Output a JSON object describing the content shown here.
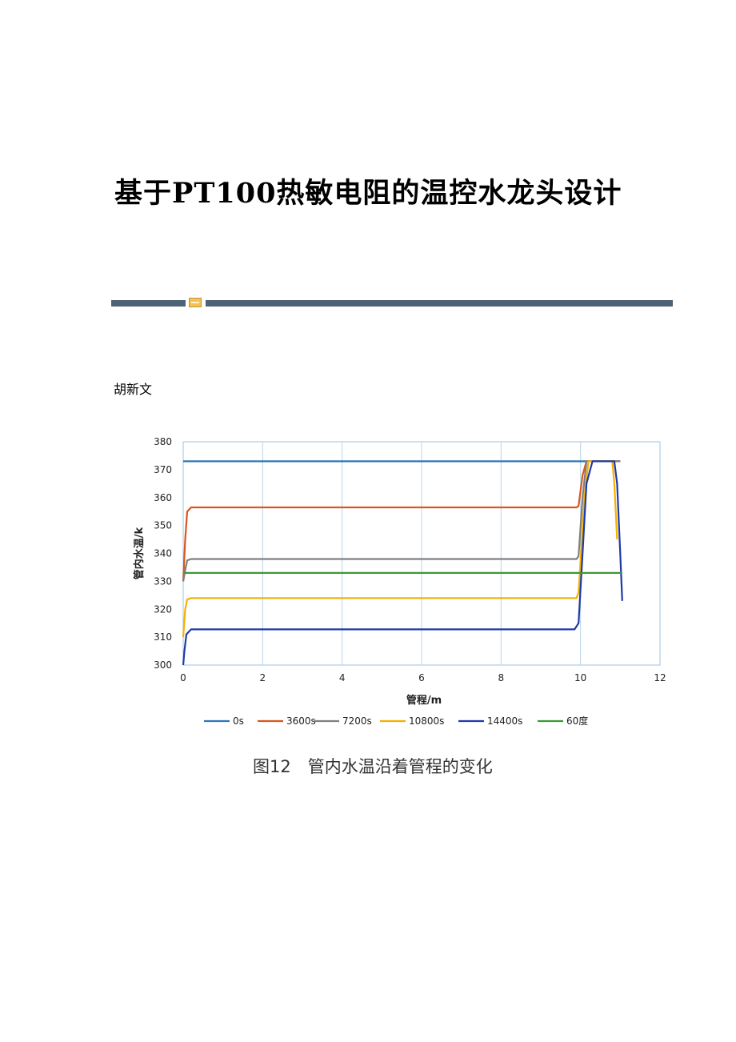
{
  "paper": {
    "title": "基于PT100热敏电阻的温控水龙头设计",
    "author": "胡新文",
    "figure_caption": "图12　管内水温沿着管程的变化"
  },
  "colors": {
    "rule_bar": "#4d6375",
    "rule_badge": "#f2c35a"
  },
  "chart_data": {
    "type": "line",
    "title": "",
    "xlabel": "管程/m",
    "ylabel": "管内水温/k",
    "xlim": [
      0,
      12
    ],
    "ylim": [
      300,
      380
    ],
    "xticks": [
      0,
      2,
      4,
      6,
      8,
      10,
      12
    ],
    "yticks": [
      300,
      310,
      320,
      330,
      340,
      350,
      360,
      370,
      380
    ],
    "grid": "vertical",
    "legend_position": "bottom",
    "series": [
      {
        "name": "0s",
        "color": "#2e75b6",
        "x": [
          0,
          11
        ],
        "y": [
          373,
          373
        ]
      },
      {
        "name": "3600s",
        "color": "#d9571e",
        "x": [
          0,
          0.05,
          0.1,
          0.2,
          9.9,
          9.95,
          10.05,
          10.15,
          11
        ],
        "y": [
          330,
          345,
          355,
          356.5,
          356.5,
          357,
          368,
          373,
          373
        ]
      },
      {
        "name": "7200s",
        "color": "#7f7f7f",
        "x": [
          0,
          0.05,
          0.1,
          0.2,
          9.9,
          9.95,
          10.05,
          10.15,
          11
        ],
        "y": [
          330,
          334,
          337.5,
          338,
          338,
          339,
          360,
          373,
          373
        ]
      },
      {
        "name": "10800s",
        "color": "#f5b000",
        "x": [
          0,
          0.05,
          0.1,
          0.2,
          9.9,
          9.95,
          10.1,
          10.2,
          10.8,
          10.85,
          10.92
        ],
        "y": [
          310,
          320,
          323.5,
          324,
          324,
          326,
          360,
          373,
          373,
          365,
          345
        ]
      },
      {
        "name": "14400s",
        "color": "#1f3aa8",
        "x": [
          0,
          0.03,
          0.08,
          0.2,
          9.85,
          9.95,
          10.05,
          10.15,
          10.3,
          10.85,
          10.92,
          11,
          11.05
        ],
        "y": [
          300,
          305,
          311,
          312.8,
          312.8,
          315,
          340,
          365,
          373,
          373,
          365,
          340,
          323
        ]
      },
      {
        "name": "60度",
        "color": "#3a9a34",
        "x": [
          0,
          11.05
        ],
        "y": [
          333,
          333
        ]
      }
    ]
  }
}
